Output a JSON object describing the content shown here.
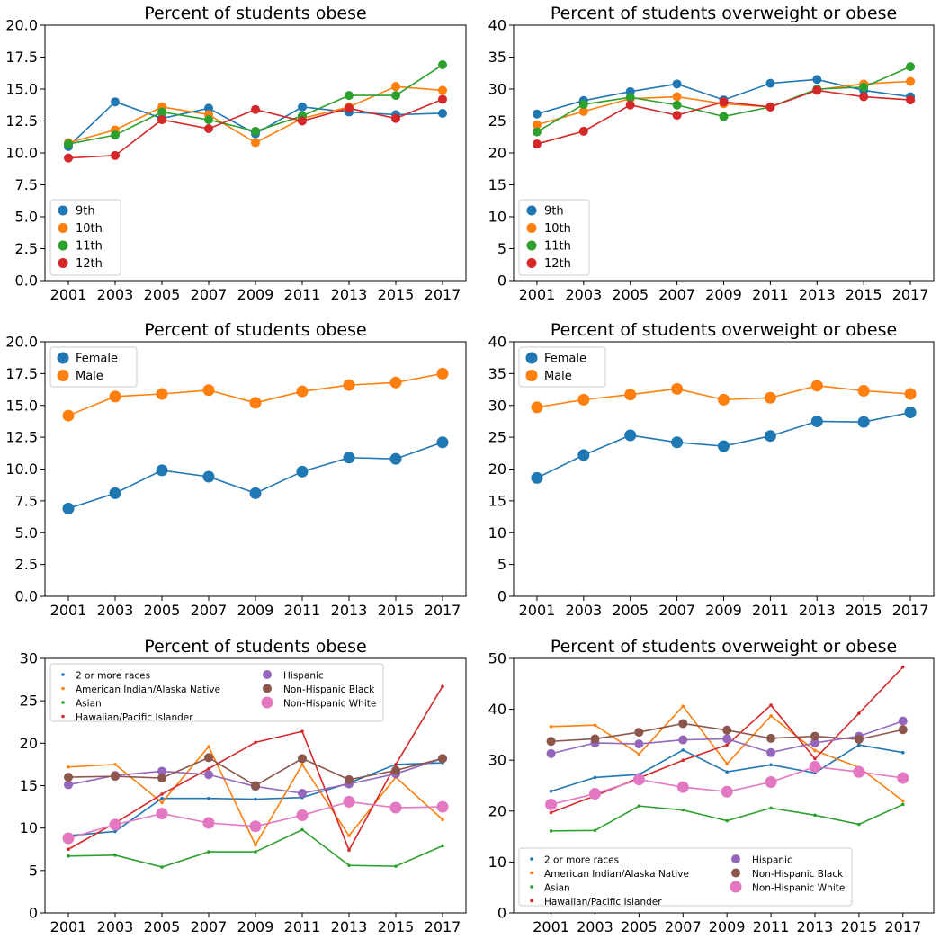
{
  "colors": {
    "blue": "#1f77b4",
    "orange": "#ff7f0e",
    "green": "#2ca02c",
    "red": "#d62728",
    "purple": "#9467bd",
    "brown": "#8c564b",
    "pink": "#e377c2"
  },
  "chart_data": [
    {
      "type": "line",
      "title": "Percent of students obese",
      "x": [
        2001,
        2003,
        2005,
        2007,
        2009,
        2011,
        2013,
        2015,
        2017
      ],
      "x_ticks": [
        "2001",
        "2003",
        "2005",
        "2007",
        "2009",
        "2011",
        "2013",
        "2015",
        "2017"
      ],
      "y_ticks": [
        "0.0",
        "2.5",
        "5.0",
        "7.5",
        "10.0",
        "12.5",
        "15.0",
        "17.5",
        "20.0"
      ],
      "ylim": [
        0,
        20
      ],
      "legend": "lower-left",
      "series": [
        {
          "name": "9th",
          "color": "blue",
          "values": [
            10.5,
            14.0,
            12.7,
            13.5,
            11.5,
            13.6,
            13.2,
            13.0,
            13.1
          ]
        },
        {
          "name": "10th",
          "color": "orange",
          "values": [
            10.8,
            11.8,
            13.6,
            13.0,
            10.8,
            12.7,
            13.6,
            15.2,
            14.9
          ]
        },
        {
          "name": "11th",
          "color": "green",
          "values": [
            10.7,
            11.4,
            13.2,
            12.6,
            11.7,
            12.9,
            14.5,
            14.5,
            16.9
          ]
        },
        {
          "name": "12th",
          "color": "red",
          "values": [
            9.6,
            9.8,
            12.6,
            11.9,
            13.4,
            12.5,
            13.5,
            12.7,
            14.2
          ]
        }
      ]
    },
    {
      "type": "line",
      "title": "Percent of students overweight or obese",
      "x": [
        2001,
        2003,
        2005,
        2007,
        2009,
        2011,
        2013,
        2015,
        2017
      ],
      "x_ticks": [
        "2001",
        "2003",
        "2005",
        "2007",
        "2009",
        "2011",
        "2013",
        "2015",
        "2017"
      ],
      "y_ticks": [
        "0",
        "5",
        "10",
        "15",
        "20",
        "25",
        "30",
        "35",
        "40"
      ],
      "ylim": [
        0,
        40
      ],
      "legend": "lower-left",
      "series": [
        {
          "name": "9th",
          "color": "blue",
          "values": [
            26.1,
            28.2,
            29.6,
            30.8,
            28.3,
            30.9,
            31.5,
            29.8,
            28.8
          ]
        },
        {
          "name": "10th",
          "color": "orange",
          "values": [
            24.4,
            26.5,
            28.5,
            28.8,
            27.7,
            27.2,
            29.9,
            30.8,
            31.2
          ]
        },
        {
          "name": "11th",
          "color": "green",
          "values": [
            23.3,
            27.6,
            28.7,
            27.5,
            25.7,
            27.2,
            30.0,
            30.3,
            33.5
          ]
        },
        {
          "name": "12th",
          "color": "red",
          "values": [
            21.4,
            23.4,
            27.5,
            25.9,
            28.0,
            27.2,
            29.8,
            28.8,
            28.3
          ]
        }
      ]
    },
    {
      "type": "line",
      "title": "Percent of students obese",
      "x": [
        2001,
        2003,
        2005,
        2007,
        2009,
        2011,
        2013,
        2015,
        2017
      ],
      "x_ticks": [
        "2001",
        "2003",
        "2005",
        "2007",
        "2009",
        "2011",
        "2013",
        "2015",
        "2017"
      ],
      "y_ticks": [
        "0.0",
        "2.5",
        "5.0",
        "7.5",
        "10.0",
        "12.5",
        "15.0",
        "17.5",
        "20.0"
      ],
      "ylim": [
        0,
        20
      ],
      "legend": "top-left",
      "series": [
        {
          "name": "Female",
          "color": "blue",
          "values": [
            6.9,
            8.1,
            9.9,
            9.4,
            8.1,
            9.8,
            10.9,
            10.8,
            12.1
          ]
        },
        {
          "name": "Male",
          "color": "orange",
          "values": [
            14.2,
            15.7,
            15.9,
            16.2,
            15.2,
            16.1,
            16.6,
            16.8,
            17.5
          ]
        }
      ]
    },
    {
      "type": "line",
      "title": "Percent of students overweight or obese",
      "x": [
        2001,
        2003,
        2005,
        2007,
        2009,
        2011,
        2013,
        2015,
        2017
      ],
      "x_ticks": [
        "2001",
        "2003",
        "2005",
        "2007",
        "2009",
        "2011",
        "2013",
        "2015",
        "2017"
      ],
      "y_ticks": [
        "0",
        "5",
        "10",
        "15",
        "20",
        "25",
        "30",
        "35",
        "40"
      ],
      "ylim": [
        0,
        40
      ],
      "legend": "top-left",
      "series": [
        {
          "name": "Female",
          "color": "blue",
          "values": [
            18.6,
            22.2,
            25.3,
            24.2,
            23.6,
            25.2,
            27.5,
            27.4,
            28.9
          ]
        },
        {
          "name": "Male",
          "color": "orange",
          "values": [
            29.7,
            30.9,
            31.7,
            32.6,
            30.9,
            31.2,
            33.1,
            32.3,
            31.8
          ]
        }
      ]
    },
    {
      "type": "line",
      "title": "Percent of students obese",
      "x": [
        2001,
        2003,
        2005,
        2007,
        2009,
        2011,
        2013,
        2015,
        2017
      ],
      "x_ticks": [
        "2001",
        "2003",
        "2005",
        "2007",
        "2009",
        "2011",
        "2013",
        "2015",
        "2017"
      ],
      "y_ticks": [
        "0",
        "5",
        "10",
        "15",
        "20",
        "25",
        "30"
      ],
      "ylim": [
        0,
        30
      ],
      "legend": "top-left, two columns",
      "series": [
        {
          "name": "2 or more races",
          "color": "blue",
          "values": [
            9.1,
            9.6,
            13.5,
            13.5,
            13.4,
            13.6,
            15.3,
            17.5,
            17.7
          ]
        },
        {
          "name": "American Indian/Alaska Native",
          "color": "orange",
          "values": [
            17.2,
            17.5,
            13.0,
            19.6,
            8.0,
            17.5,
            9.1,
            16.0,
            11.0
          ]
        },
        {
          "name": "Asian",
          "color": "green",
          "values": [
            6.7,
            6.8,
            5.4,
            7.2,
            7.2,
            9.8,
            5.6,
            5.5,
            7.9
          ]
        },
        {
          "name": "Hawaiian/Pacific Islander",
          "color": "red",
          "values": [
            7.5,
            10.6,
            14.0,
            17.0,
            20.1,
            21.4,
            7.4,
            17.5,
            26.7
          ]
        },
        {
          "name": "Hispanic",
          "color": "purple",
          "values": [
            15.1,
            16.2,
            16.7,
            16.3,
            14.9,
            14.1,
            15.2,
            16.4,
            18.2
          ]
        },
        {
          "name": "Non-Hispanic Black",
          "color": "brown",
          "values": [
            16.0,
            16.1,
            15.9,
            18.3,
            15.0,
            18.2,
            15.7,
            16.8,
            18.2
          ]
        },
        {
          "name": "Non-Hispanic White",
          "color": "pink",
          "values": [
            8.8,
            10.4,
            11.7,
            10.6,
            10.2,
            11.5,
            13.1,
            12.4,
            12.5
          ]
        }
      ]
    },
    {
      "type": "line",
      "title": "Percent of students overweight or obese",
      "x": [
        2001,
        2003,
        2005,
        2007,
        2009,
        2011,
        2013,
        2015,
        2017
      ],
      "x_ticks": [
        "2001",
        "2003",
        "2005",
        "2007",
        "2009",
        "2011",
        "2013",
        "2015",
        "2017"
      ],
      "y_ticks": [
        "0",
        "10",
        "20",
        "30",
        "40",
        "50"
      ],
      "ylim": [
        0,
        50
      ],
      "legend": "bottom-left, two columns",
      "series": [
        {
          "name": "2 or more races",
          "color": "blue",
          "values": [
            23.9,
            26.6,
            27.2,
            32.0,
            27.7,
            29.1,
            27.5,
            33.0,
            31.5
          ]
        },
        {
          "name": "American Indian/Alaska Native",
          "color": "orange",
          "values": [
            36.6,
            36.9,
            31.2,
            40.6,
            29.3,
            38.7,
            31.9,
            28.6,
            22.0
          ]
        },
        {
          "name": "Asian",
          "color": "green",
          "values": [
            16.1,
            16.2,
            21.0,
            20.2,
            18.1,
            20.6,
            19.2,
            17.4,
            21.3
          ]
        },
        {
          "name": "Hawaiian/Pacific Islander",
          "color": "red",
          "values": [
            19.7,
            23.0,
            26.5,
            30.0,
            33.0,
            40.8,
            30.3,
            39.2,
            48.3
          ]
        },
        {
          "name": "Hispanic",
          "color": "purple",
          "values": [
            31.3,
            33.4,
            33.2,
            34.0,
            34.2,
            31.5,
            33.4,
            34.7,
            37.7
          ]
        },
        {
          "name": "Non-Hispanic Black",
          "color": "brown",
          "values": [
            33.7,
            34.2,
            35.5,
            37.2,
            35.9,
            34.3,
            34.7,
            34.1,
            36.0
          ]
        },
        {
          "name": "Non-Hispanic White",
          "color": "pink",
          "values": [
            21.3,
            23.4,
            26.2,
            24.7,
            23.8,
            25.7,
            28.7,
            27.7,
            26.5
          ]
        }
      ]
    }
  ]
}
